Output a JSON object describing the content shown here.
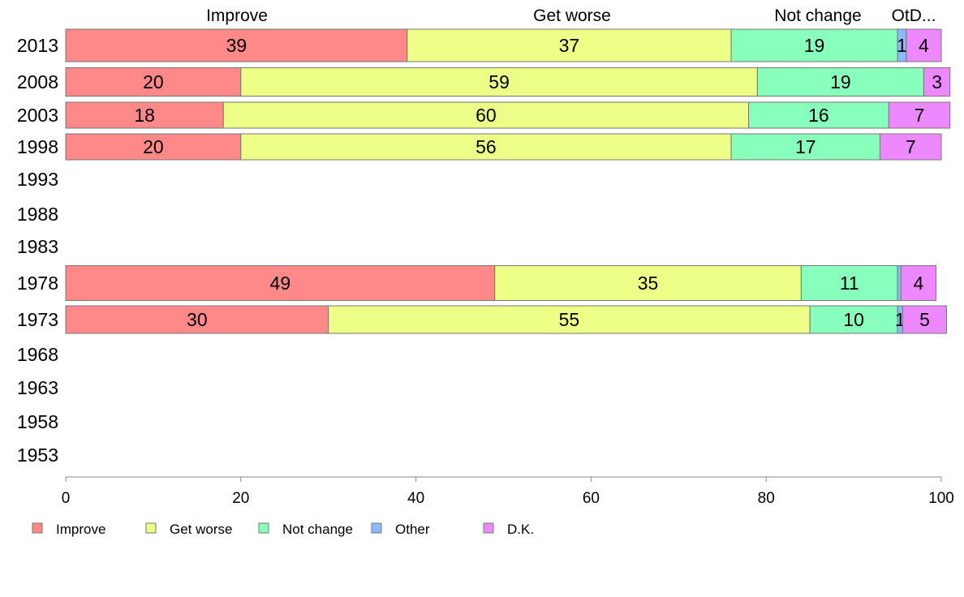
{
  "chart_data": {
    "type": "bar",
    "orientation": "horizontal",
    "stacked": true,
    "categories": [
      "2013",
      "2008",
      "2003",
      "1998",
      "1993",
      "1988",
      "1983",
      "1978",
      "1973",
      "1968",
      "1963",
      "1958",
      "1953"
    ],
    "series": [
      {
        "name": "Improve",
        "color": "#FF8888",
        "values": [
          39,
          20,
          18,
          20,
          null,
          null,
          null,
          49,
          30,
          null,
          null,
          null,
          null
        ]
      },
      {
        "name": "Get worse",
        "color": "#EEFF88",
        "values": [
          37,
          59,
          60,
          56,
          null,
          null,
          null,
          35,
          55,
          null,
          null,
          null,
          null
        ]
      },
      {
        "name": "Not change",
        "color": "#88FFBB",
        "values": [
          19,
          19,
          16,
          17,
          null,
          null,
          null,
          11,
          10,
          null,
          null,
          null,
          null
        ]
      },
      {
        "name": "Other",
        "color": "#88BBFF",
        "values": [
          1,
          0,
          0,
          0,
          null,
          null,
          null,
          0.4,
          0.6,
          null,
          null,
          null,
          null
        ]
      },
      {
        "name": "D.K.",
        "color": "#EE88FF",
        "values": [
          4,
          3,
          7,
          7,
          null,
          null,
          null,
          4,
          5,
          null,
          null,
          null,
          null
        ]
      }
    ],
    "data_labels": [
      [
        "39",
        "37",
        "19",
        "1",
        "4"
      ],
      [
        "20",
        "59",
        "19",
        "",
        "3"
      ],
      [
        "18",
        "60",
        "16",
        "",
        "7"
      ],
      [
        "20",
        "56",
        "17",
        "",
        "7"
      ],
      [
        "",
        "",
        "",
        "",
        ""
      ],
      [
        "",
        "",
        "",
        "",
        ""
      ],
      [
        "",
        "",
        "",
        "",
        ""
      ],
      [
        "49",
        "35",
        "11",
        "",
        "4"
      ],
      [
        "30",
        "55",
        "10",
        "1",
        "5"
      ],
      [
        "",
        "",
        "",
        "",
        ""
      ],
      [
        "",
        "",
        "",
        "",
        ""
      ],
      [
        "",
        "",
        "",
        "",
        ""
      ],
      [
        "",
        "",
        "",
        "",
        ""
      ]
    ],
    "top_labels": [
      "Improve",
      "Get worse",
      "Not change",
      "OtD..."
    ],
    "xlim": [
      0,
      100
    ],
    "xticks": [
      0,
      20,
      40,
      60,
      80,
      100
    ],
    "title": "",
    "xlabel": "",
    "ylabel": "",
    "grid": false,
    "legend": {
      "placement": "bottom-left",
      "entries": [
        "Improve",
        "Get worse",
        "Not change",
        "Other",
        "D.K."
      ]
    }
  }
}
